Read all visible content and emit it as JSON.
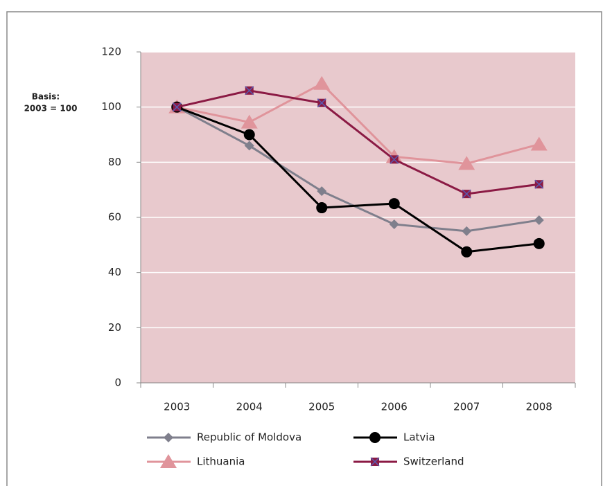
{
  "chart_data": {
    "type": "line",
    "annotations": [
      "Basis:",
      "2003 = 100"
    ],
    "categories": [
      "2003",
      "2004",
      "2005",
      "2006",
      "2007",
      "2008"
    ],
    "series": [
      {
        "name": "Republic of Moldova",
        "color": "#7f7f8c",
        "marker": "diamond",
        "values": [
          100,
          86,
          69.5,
          57.5,
          55,
          59
        ]
      },
      {
        "name": "Latvia",
        "color": "#000000",
        "marker": "circle",
        "values": [
          100,
          90,
          63.5,
          65,
          47.5,
          50.5
        ]
      },
      {
        "name": "Lithuania",
        "color": "#e0949b",
        "marker": "triangle",
        "values": [
          100,
          94.5,
          108.5,
          82,
          79.5,
          86.5
        ]
      },
      {
        "name": "Switzerland",
        "color": "#8b1a44",
        "marker": "square",
        "values": [
          100,
          106,
          101.5,
          81,
          68.5,
          72
        ]
      }
    ],
    "ylim": [
      0,
      120
    ],
    "yticks": [
      0,
      20,
      40,
      60,
      80,
      100,
      120
    ],
    "grid": true,
    "plot_background": "#e8c9cd"
  }
}
